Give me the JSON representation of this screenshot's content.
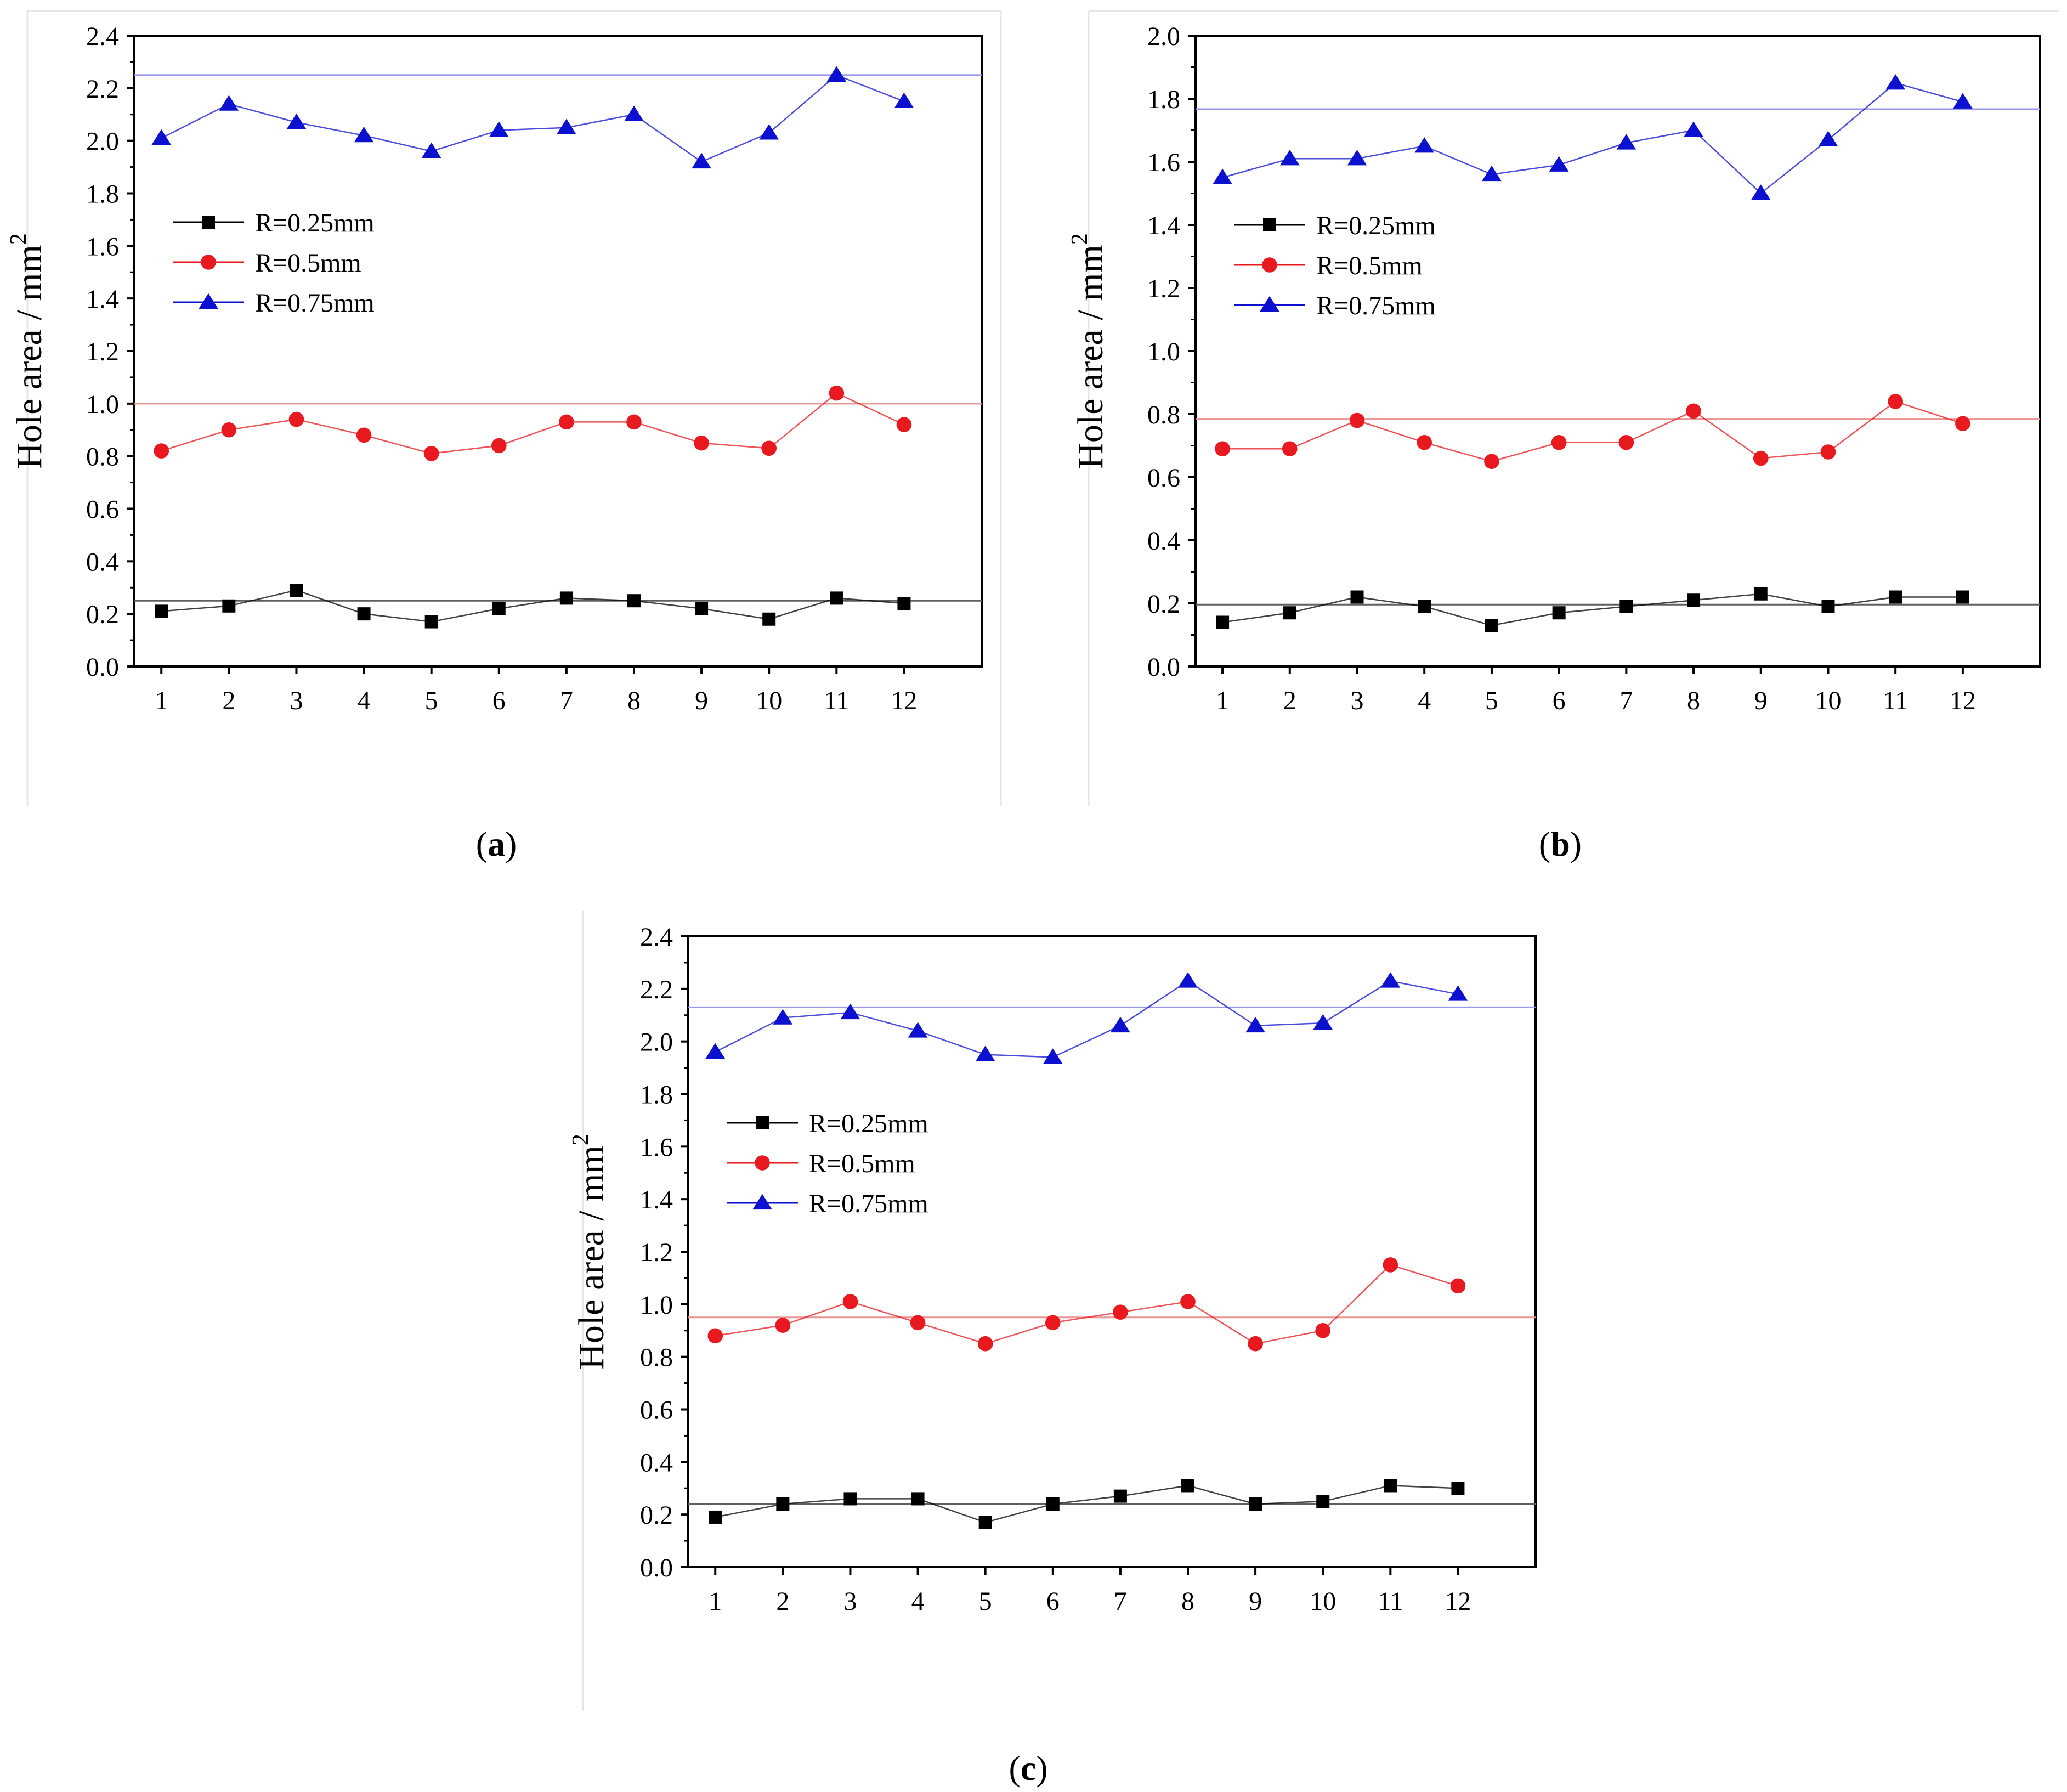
{
  "panel_labels": [
    "a",
    "b",
    "c"
  ],
  "colors": {
    "black": "#000000",
    "red": "#e8191f",
    "blue": "#0c11cf",
    "black_ref": "#5f5f5f",
    "red_ref": "#e99393",
    "blue_ref": "#9797ec"
  },
  "chart_data": [
    {
      "panel": "a",
      "type": "line",
      "ylabel": "Hole area / mm",
      "ylabel_sup": "2",
      "ylim": [
        0,
        2.4
      ],
      "y_ticks": [
        "0.0",
        "0.2",
        "0.4",
        "0.6",
        "0.8",
        "1.0",
        "1.2",
        "1.4",
        "1.6",
        "1.8",
        "2.0",
        "2.2",
        "2.4"
      ],
      "x": [
        1,
        2,
        3,
        4,
        5,
        6,
        7,
        8,
        9,
        10,
        11,
        12
      ],
      "x_ticks": [
        "1",
        "2",
        "3",
        "4",
        "5",
        "6",
        "7",
        "8",
        "9",
        "10",
        "11",
        "12"
      ],
      "legend_position": "middle-left",
      "series": [
        {
          "name": "R=0.25mm",
          "marker": "square",
          "color": "#000000",
          "reference": 0.25,
          "values": [
            0.21,
            0.23,
            0.29,
            0.2,
            0.17,
            0.22,
            0.26,
            0.25,
            0.22,
            0.18,
            0.26,
            0.24
          ]
        },
        {
          "name": "R=0.5mm",
          "marker": "circle",
          "color": "#e8191f",
          "reference": 1.0,
          "values": [
            0.82,
            0.9,
            0.94,
            0.88,
            0.81,
            0.84,
            0.93,
            0.93,
            0.85,
            0.83,
            1.04,
            0.92
          ]
        },
        {
          "name": "R=0.75mm",
          "marker": "triangle",
          "color": "#0c11cf",
          "reference": 2.25,
          "values": [
            2.01,
            2.14,
            2.07,
            2.02,
            1.96,
            2.04,
            2.05,
            2.1,
            1.92,
            2.03,
            2.25,
            2.15
          ]
        }
      ]
    },
    {
      "panel": "b",
      "type": "line",
      "ylabel": "Hole area / mm",
      "ylabel_sup": "2",
      "ylim": [
        0,
        2.0
      ],
      "y_ticks": [
        "0.0",
        "0.2",
        "0.4",
        "0.6",
        "0.8",
        "1.0",
        "1.2",
        "1.4",
        "1.6",
        "1.8",
        "2.0"
      ],
      "x": [
        1,
        2,
        3,
        4,
        5,
        6,
        7,
        8,
        9,
        10,
        11,
        12
      ],
      "x_ticks": [
        "1",
        "2",
        "3",
        "4",
        "5",
        "6",
        "7",
        "8",
        "9",
        "10",
        "11",
        "12"
      ],
      "legend_position": "middle-left",
      "series": [
        {
          "name": "R=0.25mm",
          "marker": "square",
          "color": "#000000",
          "reference": 0.196,
          "values": [
            0.14,
            0.17,
            0.22,
            0.19,
            0.13,
            0.17,
            0.19,
            0.21,
            0.23,
            0.19,
            0.22,
            0.22
          ]
        },
        {
          "name": "R=0.5mm",
          "marker": "circle",
          "color": "#e8191f",
          "reference": 0.785,
          "values": [
            0.69,
            0.69,
            0.78,
            0.71,
            0.65,
            0.71,
            0.71,
            0.81,
            0.66,
            0.68,
            0.84,
            0.77
          ]
        },
        {
          "name": "R=0.75mm",
          "marker": "triangle",
          "color": "#0c11cf",
          "reference": 1.767,
          "values": [
            1.55,
            1.61,
            1.61,
            1.65,
            1.56,
            1.59,
            1.66,
            1.7,
            1.5,
            1.67,
            1.85,
            1.79
          ]
        }
      ]
    },
    {
      "panel": "c",
      "type": "line",
      "ylabel": "Hole area / mm",
      "ylabel_sup": "2",
      "ylim": [
        0,
        2.4
      ],
      "y_ticks": [
        "0.0",
        "0.2",
        "0.4",
        "0.6",
        "0.8",
        "1.0",
        "1.2",
        "1.4",
        "1.6",
        "1.8",
        "2.0",
        "2.2",
        "2.4"
      ],
      "x": [
        1,
        2,
        3,
        4,
        5,
        6,
        7,
        8,
        9,
        10,
        11,
        12
      ],
      "x_ticks": [
        "1",
        "2",
        "3",
        "4",
        "5",
        "6",
        "7",
        "8",
        "9",
        "10",
        "11",
        "12"
      ],
      "legend_position": "middle-left",
      "series": [
        {
          "name": "R=0.25mm",
          "marker": "square",
          "color": "#000000",
          "reference": 0.24,
          "values": [
            0.19,
            0.24,
            0.26,
            0.26,
            0.17,
            0.24,
            0.27,
            0.31,
            0.24,
            0.25,
            0.31,
            0.3
          ]
        },
        {
          "name": "R=0.5mm",
          "marker": "circle",
          "color": "#e8191f",
          "reference": 0.95,
          "values": [
            0.88,
            0.92,
            1.01,
            0.93,
            0.85,
            0.93,
            0.97,
            1.01,
            0.85,
            0.9,
            1.15,
            1.07
          ]
        },
        {
          "name": "R=0.75mm",
          "marker": "triangle",
          "color": "#0c11cf",
          "reference": 2.13,
          "values": [
            1.96,
            2.09,
            2.11,
            2.04,
            1.95,
            1.94,
            2.06,
            2.23,
            2.06,
            2.07,
            2.23,
            2.18
          ]
        }
      ]
    }
  ]
}
